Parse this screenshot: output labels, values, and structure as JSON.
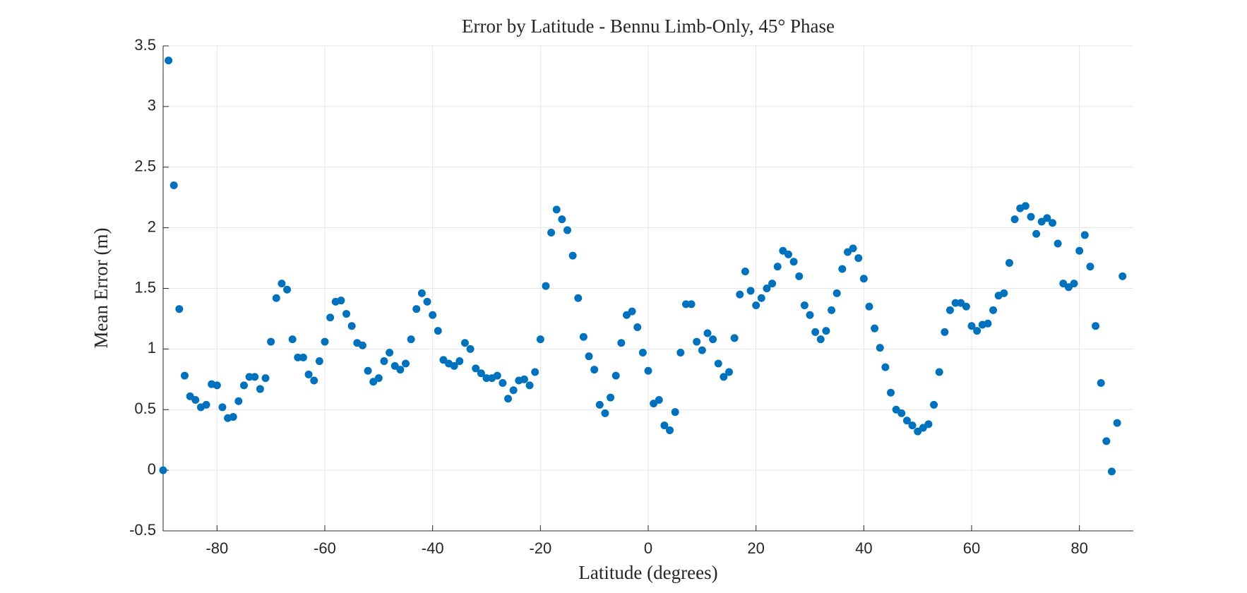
{
  "chart_data": {
    "type": "scatter",
    "title": "Error by Latitude - Bennu Limb-Only, 45° Phase",
    "x_label": "Latitude (degrees)",
    "y_label": "Mean Error (m)",
    "color": "#0072bd",
    "grid": true,
    "xlim": [
      -90,
      90
    ],
    "ylim": [
      -0.5,
      3.5
    ],
    "xticks": [
      -80,
      -60,
      -40,
      -20,
      0,
      20,
      40,
      60,
      80
    ],
    "yticks": [
      -0.5,
      0,
      0.5,
      1,
      1.5,
      2,
      2.5,
      3,
      3.5
    ],
    "x": [
      -90,
      -89,
      -88,
      -87,
      -86,
      -85,
      -84,
      -83,
      -82,
      -81,
      -80,
      -79,
      -78,
      -77,
      -76,
      -75,
      -74,
      -73,
      -72,
      -71,
      -70,
      -69,
      -68,
      -67,
      -66,
      -65,
      -64,
      -63,
      -62,
      -61,
      -60,
      -59,
      -58,
      -57,
      -56,
      -55,
      -54,
      -53,
      -52,
      -51,
      -50,
      -49,
      -48,
      -47,
      -46,
      -45,
      -44,
      -43,
      -42,
      -41,
      -40,
      -39,
      -38,
      -37,
      -36,
      -35,
      -34,
      -33,
      -32,
      -31,
      -30,
      -29,
      -28,
      -27,
      -26,
      -25,
      -24,
      -23,
      -22,
      -21,
      -20,
      -19,
      -18,
      -17,
      -16,
      -15,
      -14,
      -13,
      -12,
      -11,
      -10,
      -9,
      -8,
      -7,
      -6,
      -5,
      -4,
      -3,
      -2,
      -1,
      0,
      1,
      2,
      3,
      4,
      5,
      6,
      7,
      8,
      9,
      10,
      11,
      12,
      13,
      14,
      15,
      16,
      17,
      18,
      19,
      20,
      21,
      22,
      23,
      24,
      25,
      26,
      27,
      28,
      29,
      30,
      31,
      32,
      33,
      34,
      35,
      36,
      37,
      38,
      39,
      40,
      41,
      42,
      43,
      44,
      45,
      46,
      47,
      48,
      49,
      50,
      51,
      52,
      53,
      54,
      55,
      56,
      57,
      58,
      59,
      60,
      61,
      62,
      63,
      64,
      65,
      66,
      67,
      68,
      69,
      70,
      71,
      72,
      73,
      74,
      75,
      76,
      77,
      78,
      79,
      80,
      81,
      82,
      83,
      84,
      85,
      86,
      87,
      88
    ],
    "values": [
      0,
      3.38,
      2.35,
      1.33,
      0.78,
      0.61,
      0.58,
      0.52,
      0.54,
      0.71,
      0.7,
      0.52,
      0.43,
      0.44,
      0.57,
      0.7,
      0.77,
      0.77,
      0.67,
      0.76,
      1.06,
      1.42,
      1.54,
      1.49,
      1.08,
      0.93,
      0.93,
      0.79,
      0.74,
      0.9,
      1.06,
      1.26,
      1.39,
      1.4,
      1.29,
      1.19,
      1.05,
      1.03,
      0.82,
      0.73,
      0.76,
      0.9,
      0.97,
      0.86,
      0.83,
      0.88,
      1.08,
      1.33,
      1.46,
      1.39,
      1.28,
      1.15,
      0.91,
      0.88,
      0.86,
      0.9,
      1.05,
      1.0,
      0.84,
      0.8,
      0.76,
      0.76,
      0.78,
      0.72,
      0.59,
      0.66,
      0.74,
      0.75,
      0.7,
      0.81,
      1.08,
      1.52,
      1.96,
      2.15,
      2.07,
      1.98,
      1.77,
      1.42,
      1.1,
      0.94,
      0.83,
      0.54,
      0.47,
      0.6,
      0.78,
      1.05,
      1.28,
      1.31,
      1.18,
      0.97,
      0.82,
      0.55,
      0.58,
      0.37,
      0.33,
      0.48,
      0.97,
      1.37,
      1.37,
      1.06,
      0.99,
      1.13,
      1.08,
      0.88,
      0.77,
      0.81,
      1.09,
      1.45,
      1.64,
      1.48,
      1.36,
      1.42,
      1.5,
      1.54,
      1.68,
      1.81,
      1.78,
      1.72,
      1.6,
      1.36,
      1.28,
      1.14,
      1.08,
      1.15,
      1.32,
      1.46,
      1.66,
      1.8,
      1.83,
      1.75,
      1.58,
      1.35,
      1.17,
      1.01,
      0.85,
      0.64,
      0.5,
      0.47,
      0.41,
      0.37,
      0.32,
      0.35,
      0.38,
      0.54,
      0.81,
      1.14,
      1.32,
      1.38,
      1.38,
      1.35,
      1.19,
      1.15,
      1.2,
      1.21,
      1.32,
      1.44,
      1.46,
      1.71,
      2.07,
      2.16,
      2.18,
      2.09,
      1.95,
      2.05,
      2.08,
      2.04,
      1.87,
      1.54,
      1.51,
      1.54,
      1.81,
      1.94,
      1.68,
      1.19,
      0.72,
      0.24,
      -0.01,
      0.39,
      1.6
    ]
  }
}
